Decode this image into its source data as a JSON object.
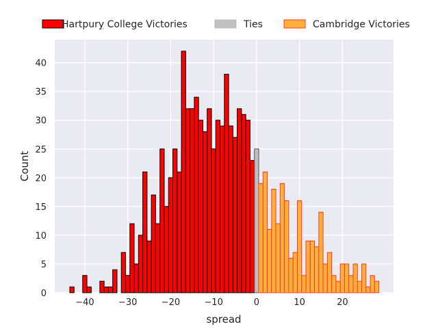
{
  "chart_data": {
    "type": "bar",
    "title": "",
    "xlabel": "spread",
    "ylabel": "Count",
    "xlim": [
      -47,
      31.9
    ],
    "ylim": [
      0,
      44
    ],
    "grid": true,
    "legend_placement": "top, above plot",
    "x_ticks": [
      -40,
      -30,
      -20,
      -10,
      0,
      10,
      20
    ],
    "x_tick_labels": [
      "−40",
      "−30",
      "−20",
      "−10",
      "0",
      "10",
      "20"
    ],
    "y_ticks": [
      0,
      5,
      10,
      15,
      20,
      25,
      30,
      35,
      40
    ],
    "y_tick_labels": [
      "0",
      "5",
      "10",
      "15",
      "20",
      "25",
      "30",
      "35",
      "40"
    ],
    "bin_width": 1,
    "series": [
      {
        "name": "Hartpury College Victories",
        "fill": "#ff0000",
        "edge": "#000000",
        "x": [
          -43,
          -40,
          -39,
          -36,
          -35,
          -34,
          -33,
          -31,
          -30,
          -29,
          -28,
          -27,
          -26,
          -25,
          -24,
          -23,
          -22,
          -21,
          -20,
          -19,
          -18,
          -17,
          -16,
          -15,
          -14,
          -13,
          -12,
          -11,
          -10,
          -9,
          -8,
          -7,
          -6,
          -5,
          -4,
          -3,
          -2,
          -1
        ],
        "values": [
          1,
          3,
          1,
          2,
          1,
          1,
          4,
          7,
          3,
          12,
          5,
          10,
          21,
          9,
          17,
          12,
          25,
          15,
          20,
          25,
          21,
          42,
          32,
          32,
          34,
          30,
          28,
          32,
          25,
          30,
          29,
          38,
          29,
          27,
          32,
          31,
          30,
          23
        ]
      },
      {
        "name": "Ties",
        "fill": "#bfbfbf",
        "edge": "#555555",
        "x": [
          0
        ],
        "values": [
          25
        ]
      },
      {
        "name": "Cambridge Victories",
        "fill": "#ffb03b",
        "edge": "#ff3a2a",
        "x": [
          1,
          2,
          3,
          4,
          5,
          6,
          7,
          8,
          9,
          10,
          11,
          12,
          13,
          14,
          15,
          16,
          17,
          18,
          19,
          20,
          21,
          22,
          23,
          24,
          25,
          26,
          27,
          28
        ],
        "values": [
          19,
          21,
          11,
          18,
          12,
          19,
          16,
          6,
          7,
          16,
          3,
          9,
          9,
          8,
          14,
          5,
          7,
          3,
          2,
          5,
          5,
          3,
          5,
          2,
          5,
          1,
          3,
          2
        ]
      }
    ]
  }
}
